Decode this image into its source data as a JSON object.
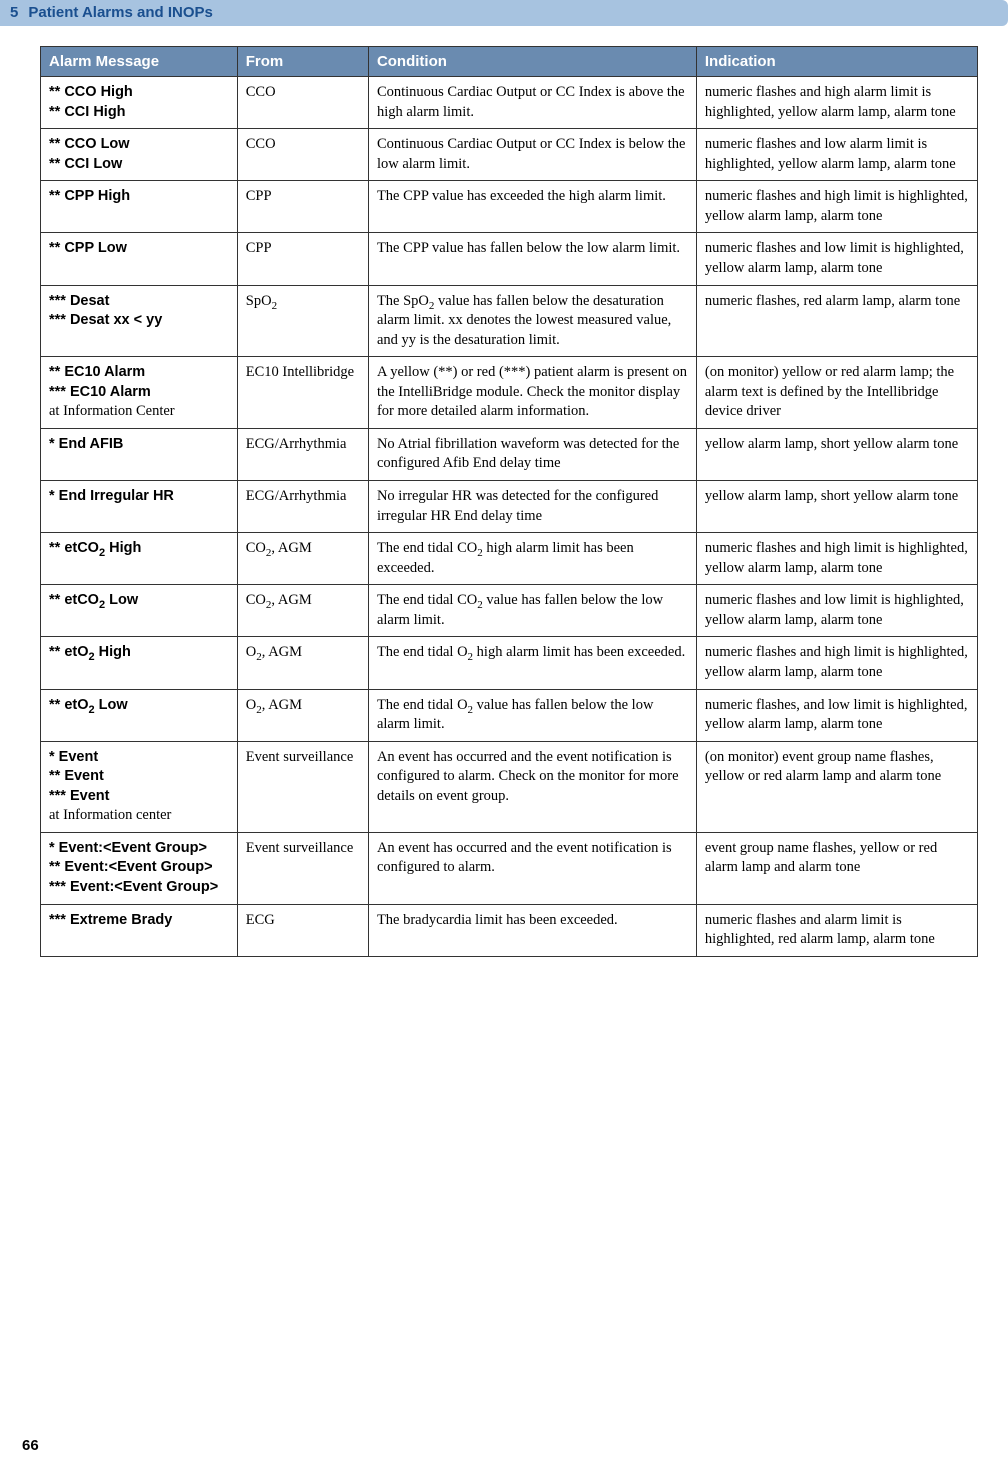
{
  "header": {
    "chapter_num": "5",
    "chapter_title": "Patient Alarms and INOPs"
  },
  "table": {
    "headers": [
      "Alarm Message",
      "From",
      "Condition",
      "Indication"
    ],
    "rows": [
      {
        "alarm_lines": [
          "** CCO High",
          "** CCI High"
        ],
        "alarm_note": "",
        "from": "CCO",
        "condition": "Continuous Cardiac Output or CC Index is above the high alarm limit.",
        "indication": "numeric flashes and high alarm limit is highlighted, yellow alarm lamp, alarm tone"
      },
      {
        "alarm_lines": [
          "** CCO Low",
          "** CCI Low"
        ],
        "alarm_note": "",
        "from": "CCO",
        "condition": "Continuous Cardiac Output or CC Index is below the low alarm limit.",
        "indication": "numeric flashes and low alarm limit is highlighted, yellow alarm lamp, alarm tone"
      },
      {
        "alarm_lines": [
          "** CPP High"
        ],
        "alarm_note": "",
        "from": "CPP",
        "condition": "The CPP value has exceeded the high alarm limit.",
        "indication": "numeric flashes and high limit is highlighted, yellow alarm lamp, alarm tone"
      },
      {
        "alarm_lines": [
          "** CPP Low"
        ],
        "alarm_note": "",
        "from": "CPP",
        "condition": "The CPP value has fallen below the low alarm limit.",
        "indication": "numeric flashes and low limit is highlighted, yellow alarm lamp, alarm tone"
      },
      {
        "alarm_lines": [
          "*** Desat",
          "*** Desat xx < yy"
        ],
        "alarm_note": "",
        "from_html": "SpO<span class=\"sub2\">2</span>",
        "condition_html": "The SpO<span class=\"sub2\">2</span> value has fallen below the desaturation alarm limit. xx denotes the lowest measured value, and yy is the desaturation limit.",
        "indication": "numeric flashes, red alarm lamp, alarm tone"
      },
      {
        "alarm_lines": [
          "** EC10 Alarm",
          "*** EC10 Alarm"
        ],
        "alarm_note": "at Information Center",
        "from": "EC10 Intellibridge",
        "condition": "A yellow (**) or red (***) patient alarm is present on the IntelliBridge module. Check the monitor display for more detailed alarm information.",
        "indication": "(on monitor) yellow or red alarm lamp; the alarm text is defined by the Intellibridge device driver"
      },
      {
        "alarm_lines": [
          "* End AFIB"
        ],
        "alarm_note": "",
        "from": "ECG/Arrhythmia",
        "condition": "No Atrial fibrillation waveform was detected for the configured Afib End delay time",
        "indication": "yellow alarm lamp, short yellow alarm tone"
      },
      {
        "alarm_lines": [
          "* End Irregular HR"
        ],
        "alarm_note": "",
        "from": "ECG/Arrhythmia",
        "condition": "No irregular HR was detected for the configured irregular HR End delay time",
        "indication": "yellow alarm lamp, short yellow alarm tone"
      },
      {
        "alarm_lines_html": [
          "** etCO<span class=\"sub2\">2</span> High"
        ],
        "alarm_note": "",
        "from_html": "CO<span class=\"sub2\">2</span>, AGM",
        "condition_html": "The end tidal CO<span class=\"sub2\">2</span> high alarm limit has been exceeded.",
        "indication": "numeric flashes and high limit is highlighted, yellow alarm lamp, alarm tone"
      },
      {
        "alarm_lines_html": [
          "** etCO<span class=\"sub2\">2</span> Low"
        ],
        "alarm_note": "",
        "from_html": "CO<span class=\"sub2\">2</span>, AGM",
        "condition_html": "The end tidal CO<span class=\"sub2\">2</span> value has fallen below the low alarm limit.",
        "indication": "numeric flashes and low limit is highlighted, yellow alarm lamp, alarm tone"
      },
      {
        "alarm_lines_html": [
          "** etO<span class=\"sub2\">2</span> High"
        ],
        "alarm_note": "",
        "from_html": "O<span class=\"sub2\">2</span>, AGM",
        "condition_html": "The end tidal O<span class=\"sub2\">2</span> high alarm limit has been exceeded.",
        "indication": "numeric flashes and high limit is highlighted, yellow alarm lamp, alarm tone"
      },
      {
        "alarm_lines_html": [
          "** etO<span class=\"sub2\">2</span> Low"
        ],
        "alarm_note": "",
        "from_html": "O<span class=\"sub2\">2</span>, AGM",
        "condition_html": "The end tidal O<span class=\"sub2\">2</span> value has fallen below the low alarm limit.",
        "indication": "numeric flashes, and low limit is highlighted, yellow alarm lamp, alarm tone"
      },
      {
        "alarm_lines": [
          "* Event",
          "** Event",
          "*** Event"
        ],
        "alarm_note": "at Information center",
        "from": "Event surveillance",
        "condition": "An event has occurred and the event notification is configured to alarm. Check on the monitor for more details on event group.",
        "indication": "(on monitor) event group name flashes, yellow or red alarm lamp and alarm tone"
      },
      {
        "alarm_lines": [
          "* Event:<Event Group>",
          "** Event:<Event Group>",
          "*** Event:<Event Group>"
        ],
        "alarm_note": "",
        "from": "Event surveillance",
        "condition": "An event has occurred and the event notification is configured to alarm.",
        "indication": "event group name flashes, yellow or red alarm lamp and alarm tone"
      },
      {
        "alarm_lines": [
          "*** Extreme Brady"
        ],
        "alarm_note": "",
        "from": "ECG",
        "condition": "The bradycardia limit has been exceeded.",
        "indication": "numeric flashes and alarm limit is highlighted, red alarm lamp, alarm tone"
      }
    ]
  },
  "page_number": "66"
}
